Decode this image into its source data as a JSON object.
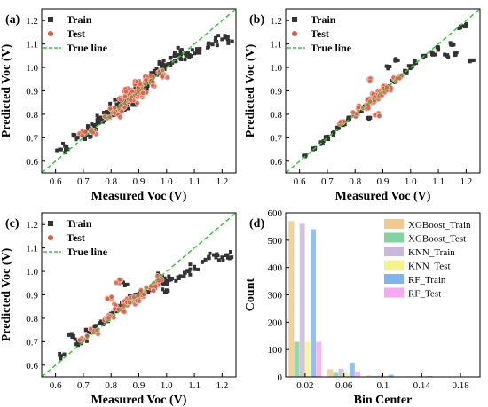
{
  "panels": [
    {
      "label": "(a)",
      "chart_data": {
        "type": "scatter",
        "xlabel": "Measured Voc (V)",
        "ylabel": "Predicted Voc (V)",
        "xlim": [
          0.55,
          1.25
        ],
        "ylim": [
          0.55,
          1.25
        ],
        "xticks": [
          "0.6",
          "0.7",
          "0.8",
          "0.9",
          "1.0",
          "1.1",
          "1.2"
        ],
        "yticks": [
          "0.6",
          "0.7",
          "0.8",
          "0.9",
          "1.0",
          "1.1",
          "1.2"
        ],
        "legend": [
          "Train",
          "Test",
          "True line"
        ],
        "legend_position": "top-left",
        "series": [
          {
            "name": "Train",
            "marker": "square",
            "color": "#333333",
            "spread": 0.035,
            "points": [
              [
                0.62,
                0.65
              ],
              [
                0.64,
                0.66
              ],
              [
                0.68,
                0.7
              ],
              [
                0.7,
                0.72
              ],
              [
                0.71,
                0.71
              ],
              [
                0.72,
                0.74
              ],
              [
                0.74,
                0.75
              ],
              [
                0.75,
                0.76
              ],
              [
                0.76,
                0.78
              ],
              [
                0.77,
                0.77
              ],
              [
                0.78,
                0.8
              ],
              [
                0.79,
                0.79
              ],
              [
                0.8,
                0.81
              ],
              [
                0.81,
                0.83
              ],
              [
                0.82,
                0.82
              ],
              [
                0.83,
                0.85
              ],
              [
                0.84,
                0.84
              ],
              [
                0.85,
                0.86
              ],
              [
                0.86,
                0.88
              ],
              [
                0.87,
                0.87
              ],
              [
                0.88,
                0.89
              ],
              [
                0.89,
                0.9
              ],
              [
                0.9,
                0.91
              ],
              [
                0.91,
                0.93
              ],
              [
                0.92,
                0.92
              ],
              [
                0.93,
                0.94
              ],
              [
                0.94,
                0.95
              ],
              [
                0.95,
                0.96
              ],
              [
                0.96,
                0.97
              ],
              [
                0.97,
                0.98
              ],
              [
                0.98,
                0.99
              ],
              [
                1.0,
                1.01
              ],
              [
                1.02,
                1.02
              ],
              [
                1.05,
                1.04
              ],
              [
                1.07,
                1.05
              ],
              [
                1.1,
                1.06
              ],
              [
                1.12,
                1.08
              ],
              [
                1.15,
                1.1
              ],
              [
                1.18,
                1.11
              ],
              [
                1.2,
                1.12
              ],
              [
                1.22,
                1.12
              ],
              [
                1.05,
                1.07
              ],
              [
                1.03,
                1.05
              ],
              [
                0.99,
                1.03
              ],
              [
                0.85,
                0.82
              ],
              [
                0.88,
                0.85
              ]
            ]
          },
          {
            "name": "Test",
            "marker": "circle",
            "color": "#d35f3f",
            "spread": 0.03,
            "points": [
              [
                0.7,
                0.72
              ],
              [
                0.74,
                0.73
              ],
              [
                0.78,
                0.79
              ],
              [
                0.8,
                0.82
              ],
              [
                0.82,
                0.81
              ],
              [
                0.84,
                0.86
              ],
              [
                0.85,
                0.84
              ],
              [
                0.86,
                0.87
              ],
              [
                0.87,
                0.89
              ],
              [
                0.88,
                0.86
              ],
              [
                0.89,
                0.9
              ],
              [
                0.9,
                0.88
              ],
              [
                0.91,
                0.92
              ],
              [
                0.92,
                0.9
              ],
              [
                0.93,
                0.95
              ],
              [
                0.95,
                0.93
              ],
              [
                0.97,
                0.98
              ],
              [
                0.99,
                0.97
              ],
              [
                0.86,
                0.91
              ],
              [
                0.9,
                0.94
              ],
              [
                0.83,
                0.8
              ],
              [
                0.94,
                0.96
              ]
            ]
          }
        ],
        "reference_line": {
          "name": "True line",
          "style": "dashed",
          "color": "#33cc33"
        }
      }
    },
    {
      "label": "(b)",
      "chart_data": {
        "type": "scatter",
        "xlabel": "Measured Voc (V)",
        "ylabel": "Predicted Voc (V)",
        "xlim": [
          0.55,
          1.25
        ],
        "ylim": [
          0.55,
          1.25
        ],
        "xticks": [
          "0.6",
          "0.7",
          "0.8",
          "0.9",
          "1.0",
          "1.1",
          "1.2"
        ],
        "yticks": [
          "0.6",
          "0.7",
          "0.8",
          "0.9",
          "1.0",
          "1.1",
          "1.2"
        ],
        "legend": [
          "Train",
          "Test",
          "True line"
        ],
        "legend_position": "top-left",
        "series": [
          {
            "name": "Train",
            "marker": "square",
            "color": "#333333",
            "spread": 0.015,
            "points": [
              [
                0.62,
                0.62
              ],
              [
                0.65,
                0.65
              ],
              [
                0.68,
                0.68
              ],
              [
                0.7,
                0.7
              ],
              [
                0.72,
                0.72
              ],
              [
                0.74,
                0.74
              ],
              [
                0.76,
                0.76
              ],
              [
                0.78,
                0.78
              ],
              [
                0.8,
                0.8
              ],
              [
                0.82,
                0.82
              ],
              [
                0.84,
                0.84
              ],
              [
                0.86,
                0.86
              ],
              [
                0.88,
                0.88
              ],
              [
                0.9,
                0.9
              ],
              [
                0.92,
                0.92
              ],
              [
                0.94,
                0.94
              ],
              [
                0.96,
                0.96
              ],
              [
                0.98,
                0.98
              ],
              [
                1.0,
                1.0
              ],
              [
                1.02,
                1.02
              ],
              [
                1.05,
                1.05
              ],
              [
                1.08,
                1.06
              ],
              [
                1.1,
                1.08
              ],
              [
                1.13,
                1.05
              ],
              [
                1.15,
                1.1
              ],
              [
                1.18,
                1.17
              ],
              [
                1.2,
                1.18
              ],
              [
                1.22,
                1.03
              ],
              [
                1.16,
                1.06
              ],
              [
                0.92,
                1.0
              ],
              [
                0.95,
                1.03
              ],
              [
                0.85,
                0.78
              ]
            ]
          },
          {
            "name": "Test",
            "marker": "circle",
            "color": "#d35f3f",
            "spread": 0.02,
            "points": [
              [
                0.75,
                0.76
              ],
              [
                0.8,
                0.8
              ],
              [
                0.82,
                0.83
              ],
              [
                0.84,
                0.83
              ],
              [
                0.85,
                0.86
              ],
              [
                0.86,
                0.85
              ],
              [
                0.87,
                0.88
              ],
              [
                0.88,
                0.87
              ],
              [
                0.89,
                0.9
              ],
              [
                0.9,
                0.89
              ],
              [
                0.91,
                0.92
              ],
              [
                0.92,
                0.91
              ],
              [
                0.94,
                0.95
              ],
              [
                0.96,
                0.96
              ],
              [
                0.85,
                0.95
              ],
              [
                0.88,
                0.8
              ]
            ]
          }
        ],
        "reference_line": {
          "name": "True line",
          "style": "dashed",
          "color": "#33cc33"
        }
      }
    },
    {
      "label": "(c)",
      "chart_data": {
        "type": "scatter",
        "xlabel": "Measured Voc (V)",
        "ylabel": "Predicted Voc (V)",
        "xlim": [
          0.55,
          1.25
        ],
        "ylim": [
          0.55,
          1.25
        ],
        "xticks": [
          "0.6",
          "0.7",
          "0.8",
          "0.9",
          "1.0",
          "1.1",
          "1.2"
        ],
        "yticks": [
          "0.6",
          "0.7",
          "0.8",
          "0.9",
          "1.0",
          "1.1",
          "1.2"
        ],
        "legend": [
          "Train",
          "Test",
          "True line"
        ],
        "legend_position": "top-left",
        "series": [
          {
            "name": "Train",
            "marker": "square",
            "color": "#333333",
            "spread": 0.03,
            "points": [
              [
                0.62,
                0.64
              ],
              [
                0.66,
                0.72
              ],
              [
                0.68,
                0.7
              ],
              [
                0.7,
                0.71
              ],
              [
                0.72,
                0.74
              ],
              [
                0.74,
                0.76
              ],
              [
                0.76,
                0.78
              ],
              [
                0.78,
                0.8
              ],
              [
                0.8,
                0.82
              ],
              [
                0.82,
                0.84
              ],
              [
                0.84,
                0.86
              ],
              [
                0.86,
                0.87
              ],
              [
                0.88,
                0.89
              ],
              [
                0.9,
                0.9
              ],
              [
                0.92,
                0.91
              ],
              [
                0.94,
                0.92
              ],
              [
                0.96,
                0.93
              ],
              [
                0.98,
                0.95
              ],
              [
                1.0,
                0.96
              ],
              [
                1.02,
                0.97
              ],
              [
                1.05,
                0.98
              ],
              [
                1.08,
                1.0
              ],
              [
                1.1,
                1.02
              ],
              [
                1.14,
                1.05
              ],
              [
                1.17,
                1.07
              ],
              [
                1.2,
                1.06
              ],
              [
                1.22,
                1.07
              ],
              [
                0.98,
                0.98
              ],
              [
                1.0,
                0.92
              ],
              [
                0.85,
                0.94
              ]
            ]
          },
          {
            "name": "Test",
            "marker": "circle",
            "color": "#d35f3f",
            "spread": 0.03,
            "points": [
              [
                0.7,
                0.71
              ],
              [
                0.74,
                0.74
              ],
              [
                0.78,
                0.8
              ],
              [
                0.8,
                0.81
              ],
              [
                0.82,
                0.85
              ],
              [
                0.84,
                0.84
              ],
              [
                0.85,
                0.87
              ],
              [
                0.86,
                0.86
              ],
              [
                0.87,
                0.88
              ],
              [
                0.88,
                0.87
              ],
              [
                0.89,
                0.89
              ],
              [
                0.9,
                0.88
              ],
              [
                0.91,
                0.9
              ],
              [
                0.92,
                0.91
              ],
              [
                0.94,
                0.93
              ],
              [
                0.96,
                0.95
              ],
              [
                0.98,
                0.97
              ],
              [
                0.83,
                0.95
              ],
              [
                0.8,
                0.88
              ]
            ]
          }
        ],
        "reference_line": {
          "name": "True line",
          "style": "dashed",
          "color": "#33cc33"
        }
      }
    },
    {
      "label": "(d)",
      "chart_data": {
        "type": "bar",
        "xlabel": "Bin Center",
        "ylabel": "Count",
        "xlim": [
          0.0,
          0.2
        ],
        "ylim": [
          0,
          600
        ],
        "xticks": [
          "0.02",
          "0.06",
          "0.1",
          "0.14",
          "0.18"
        ],
        "yticks": [
          "0",
          "100",
          "200",
          "300",
          "400",
          "500",
          "600"
        ],
        "legend_position": "top-right",
        "categories": [
          0.02,
          0.06,
          0.1,
          0.14,
          0.18
        ],
        "series": [
          {
            "name": "XGBoost_Train",
            "color": "#f5c98a",
            "values": [
              570,
              28,
              5,
              2,
              1
            ]
          },
          {
            "name": "XGBoost_Test",
            "color": "#7fd4a0",
            "values": [
              128,
              15,
              3,
              1,
              0
            ]
          },
          {
            "name": "KNN_Train",
            "color": "#c9b8dc",
            "values": [
              560,
              30,
              5,
              2,
              1
            ]
          },
          {
            "name": "KNN_Test",
            "color": "#f4f48a",
            "values": [
              128,
              14,
              3,
              1,
              0
            ]
          },
          {
            "name": "RF_Train",
            "color": "#7fb5ee",
            "values": [
              540,
              52,
              8,
              3,
              1
            ]
          },
          {
            "name": "RF_Test",
            "color": "#f7a8f0",
            "values": [
              128,
              20,
              2,
              1,
              0
            ]
          }
        ]
      }
    }
  ]
}
